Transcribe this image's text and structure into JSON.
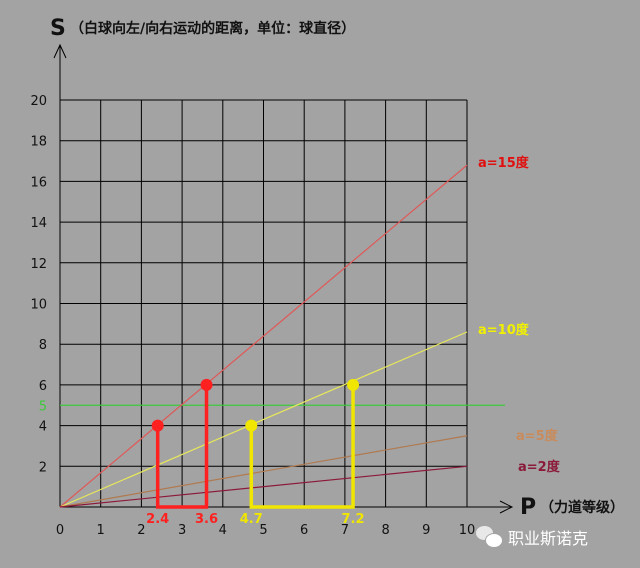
{
  "chart_data": {
    "type": "line",
    "ylabel_letter": "S",
    "ylabel_text": "（白球向左/向右运动的距离，单位：球直径）",
    "xlabel_letter": "P",
    "xlabel_text": "（力道等级）",
    "xlim": [
      0,
      10
    ],
    "ylim": [
      0,
      20
    ],
    "x_ticks": [
      "0",
      "1",
      "2",
      "3",
      "4",
      "5",
      "6",
      "7",
      "8",
      "9",
      "10"
    ],
    "y_ticks": [
      "2",
      "4",
      "6",
      "8",
      "10",
      "12",
      "14",
      "16",
      "18",
      "20"
    ],
    "grid": true,
    "series": [
      {
        "name": "a=15度",
        "color": "#e05858",
        "label_color": "#e01010",
        "points": [
          [
            0,
            0
          ],
          [
            10,
            16.8
          ]
        ]
      },
      {
        "name": "a=10度",
        "color": "#e8e85a",
        "label_color": "#f0f000",
        "points": [
          [
            0,
            0
          ],
          [
            10,
            8.6
          ]
        ]
      },
      {
        "name": "a=5度",
        "color": "#b07a50",
        "label_color": "#c98b5c",
        "points": [
          [
            0,
            0
          ],
          [
            10,
            3.5
          ]
        ]
      },
      {
        "name": "a=2度",
        "color": "#8b1a3a",
        "label_color": "#8b1a3a",
        "points": [
          [
            0,
            0
          ],
          [
            10,
            2.0
          ]
        ]
      }
    ],
    "reference_line": {
      "label": "5",
      "y": 5,
      "color": "#3ec83e"
    },
    "markers": [
      {
        "x": 2.4,
        "y": 4,
        "label": "2.4",
        "color": "#ff2020"
      },
      {
        "x": 3.6,
        "y": 6,
        "label": "3.6",
        "color": "#ff2020"
      },
      {
        "x": 4.7,
        "y": 4,
        "label": "4.7",
        "color": "#f0e600"
      },
      {
        "x": 7.2,
        "y": 6,
        "label": "7.2",
        "color": "#f0e600"
      }
    ]
  },
  "watermark": {
    "text": "职业斯诺克"
  }
}
